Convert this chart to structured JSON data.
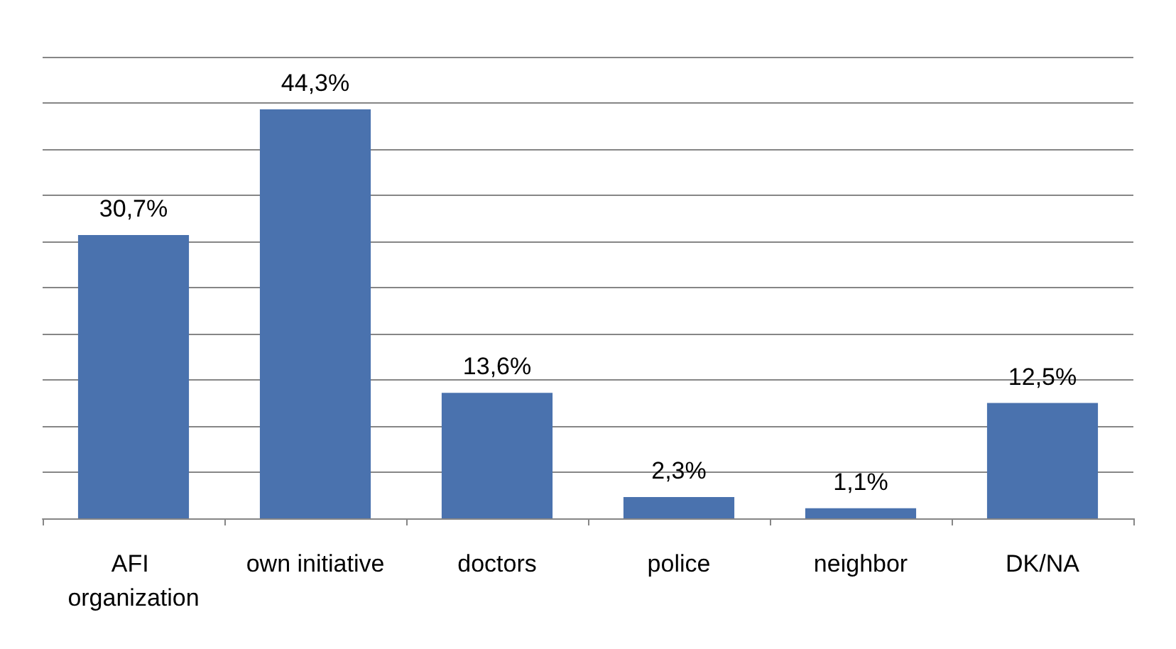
{
  "chart_data": {
    "type": "bar",
    "categories": [
      "AFI organization",
      "own initiative",
      "doctors",
      "police",
      "neighbor",
      "DK/NA"
    ],
    "values": [
      30.7,
      44.3,
      13.6,
      2.3,
      1.1,
      12.5
    ],
    "value_labels": [
      "30,7%",
      "44,3%",
      "13,6%",
      "2,3%",
      "1,1%",
      "12,5%"
    ],
    "color": "#4a72ae",
    "ylim": [
      0,
      50
    ],
    "yticks": [
      {
        "value": 0,
        "label": null
      },
      {
        "value": 5,
        "label": null
      },
      {
        "value": 10,
        "label": null
      },
      {
        "value": 15,
        "label": null
      },
      {
        "value": 20,
        "label": null
      },
      {
        "value": 25,
        "label": null
      },
      {
        "value": 30,
        "label": null
      },
      {
        "value": 35,
        "label": null
      },
      {
        "value": 40,
        "label": null
      },
      {
        "value": 45,
        "label": null
      },
      {
        "value": 50,
        "label": null
      }
    ],
    "grid": "y",
    "tick_labels": "x"
  }
}
